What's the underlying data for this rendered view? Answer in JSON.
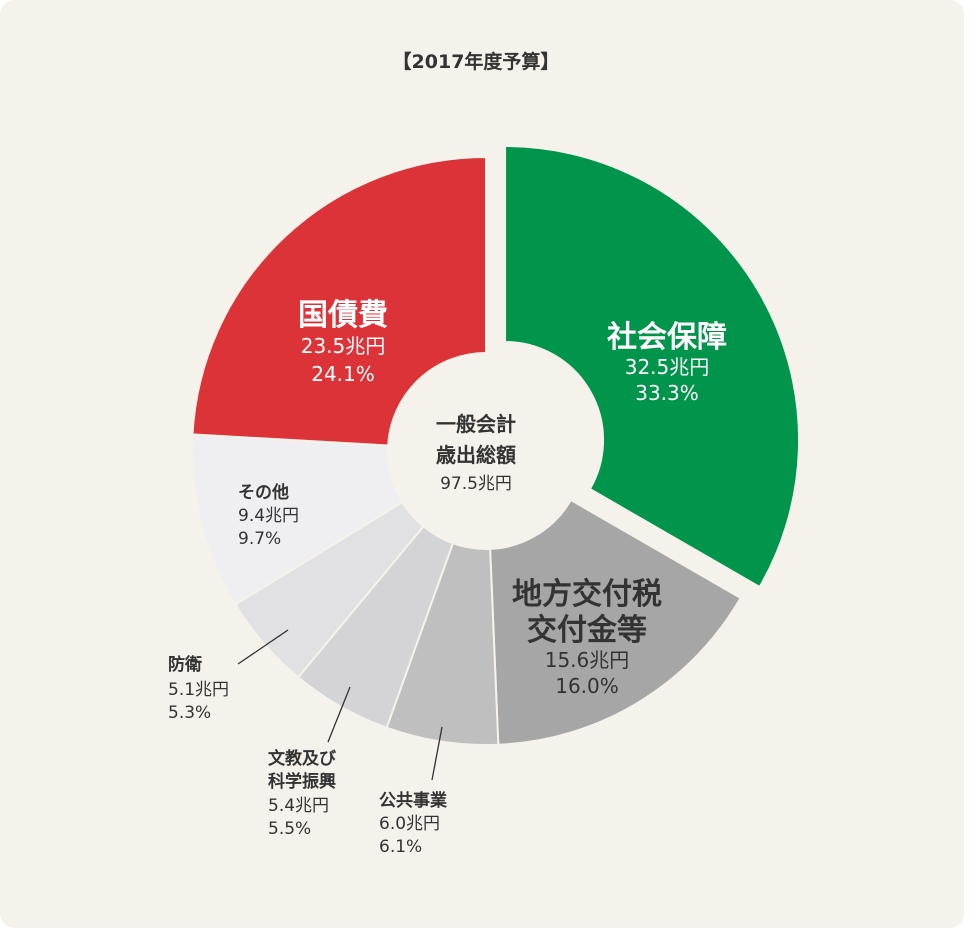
{
  "chart_data": {
    "type": "pie",
    "title": "【2017年度予算】",
    "center": {
      "line1": "一般会計",
      "line2": "歳出総額",
      "line3": "97.5兆円"
    },
    "categories": [
      "社会保障",
      "地方交付税交付金等",
      "公共事業",
      "文教及び科学振興",
      "防衛",
      "その他",
      "国債費"
    ],
    "values": [
      32.5,
      15.6,
      6.0,
      5.4,
      5.1,
      9.4,
      23.5
    ],
    "unit": "兆円",
    "percents": [
      33.3,
      16.0,
      6.1,
      5.5,
      5.3,
      9.7,
      24.1
    ],
    "colors": [
      "#00954a",
      "#a6a6a6",
      "#bfbfbf",
      "#d4d4d6",
      "#e1e1e3",
      "#efeff1",
      "#dc3338"
    ],
    "exploded": [
      "社会保障"
    ],
    "labels": {
      "social": {
        "name": "社会保障",
        "amount": "32.5兆円",
        "pct": "33.3%"
      },
      "local": {
        "name1": "地方交付税",
        "name2": "交付金等",
        "amount": "15.6兆円",
        "pct": "16.0%"
      },
      "public": {
        "name": "公共事業",
        "amount": "6.0兆円",
        "pct": "6.1%"
      },
      "edu": {
        "name1": "文教及び",
        "name2": "科学振興",
        "amount": "5.4兆円",
        "pct": "5.5%"
      },
      "defense": {
        "name": "防衛",
        "amount": "5.1兆円",
        "pct": "5.3%"
      },
      "other": {
        "name": "その他",
        "amount": "9.4兆円",
        "pct": "9.7%"
      },
      "debt": {
        "name": "国債費",
        "amount": "23.5兆円",
        "pct": "24.1%"
      }
    }
  }
}
